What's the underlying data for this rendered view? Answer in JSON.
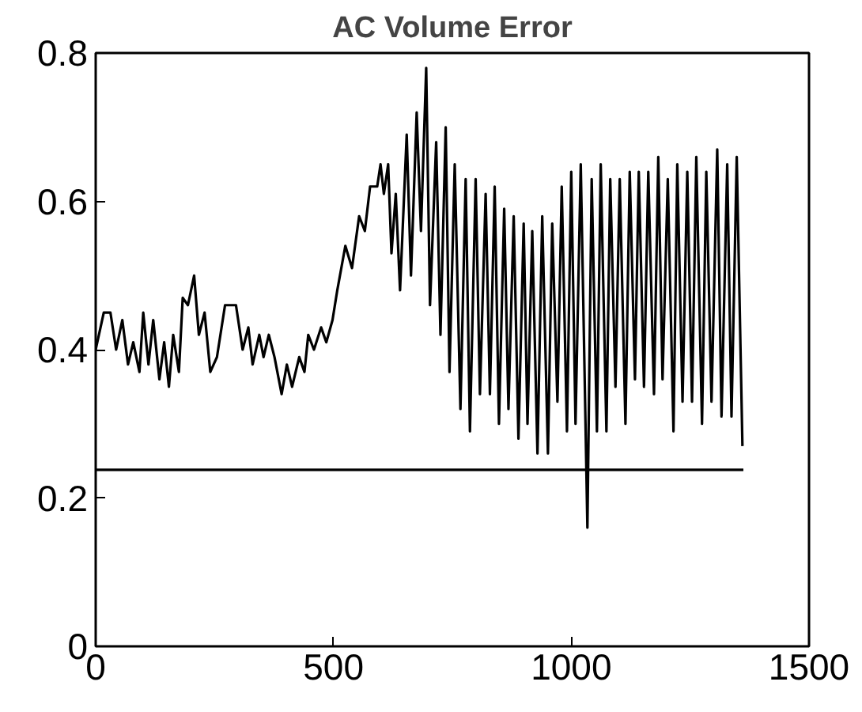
{
  "chart_data": {
    "type": "line",
    "title": "AC Volume Error",
    "xlim": [
      0,
      1500
    ],
    "ylim": [
      0,
      0.8
    ],
    "xticks": [
      0,
      500,
      1000,
      1500
    ],
    "yticks": [
      0,
      0.2,
      0.4,
      0.6,
      0.8
    ],
    "grid": false,
    "line_style": "solid",
    "series": [
      {
        "color": "#000000",
        "x": [
          0,
          17,
          31,
          43,
          56,
          68,
          79,
          92,
          100,
          111,
          121,
          134,
          144,
          154,
          163,
          175,
          183,
          194,
          207,
          217,
          229,
          241,
          255,
          272,
          295,
          309,
          321,
          330,
          344,
          353,
          364,
          376,
          391,
          402,
          413,
          428,
          439,
          447,
          459,
          474,
          485,
          498,
          508,
          525,
          539,
          554,
          566,
          577,
          592,
          599,
          606,
          615,
          622,
          631,
          640,
          654,
          663,
          675,
          684,
          695,
          703,
          716,
          725,
          736,
          744,
          755,
          767,
          778,
          787,
          799,
          808,
          820,
          829,
          839,
          848,
          859,
          868,
          879,
          889,
          900,
          908,
          918,
          929,
          939,
          951,
          960,
          971,
          980,
          991,
          1000,
          1009,
          1020,
          1034,
          1043,
          1054,
          1062,
          1074,
          1082,
          1093,
          1102,
          1114,
          1123,
          1134,
          1142,
          1153,
          1162,
          1174,
          1183,
          1192,
          1203,
          1215,
          1223,
          1234,
          1244,
          1254,
          1263,
          1275,
          1284,
          1295,
          1307,
          1316,
          1328,
          1337,
          1348,
          1360
        ],
        "values": [
          0.4,
          0.45,
          0.45,
          0.4,
          0.44,
          0.38,
          0.41,
          0.37,
          0.45,
          0.38,
          0.44,
          0.36,
          0.41,
          0.35,
          0.42,
          0.37,
          0.47,
          0.46,
          0.5,
          0.42,
          0.45,
          0.37,
          0.39,
          0.46,
          0.46,
          0.4,
          0.43,
          0.38,
          0.42,
          0.39,
          0.42,
          0.39,
          0.34,
          0.38,
          0.35,
          0.39,
          0.37,
          0.42,
          0.4,
          0.43,
          0.41,
          0.44,
          0.48,
          0.54,
          0.51,
          0.58,
          0.56,
          0.62,
          0.62,
          0.65,
          0.61,
          0.65,
          0.53,
          0.61,
          0.48,
          0.69,
          0.5,
          0.72,
          0.56,
          0.78,
          0.46,
          0.68,
          0.42,
          0.7,
          0.37,
          0.65,
          0.32,
          0.63,
          0.29,
          0.63,
          0.34,
          0.61,
          0.34,
          0.62,
          0.3,
          0.59,
          0.32,
          0.58,
          0.28,
          0.57,
          0.3,
          0.56,
          0.26,
          0.58,
          0.26,
          0.57,
          0.33,
          0.62,
          0.29,
          0.64,
          0.3,
          0.65,
          0.16,
          0.63,
          0.29,
          0.65,
          0.29,
          0.63,
          0.35,
          0.63,
          0.3,
          0.64,
          0.36,
          0.64,
          0.35,
          0.64,
          0.34,
          0.66,
          0.36,
          0.63,
          0.29,
          0.65,
          0.33,
          0.64,
          0.33,
          0.66,
          0.3,
          0.64,
          0.33,
          0.67,
          0.31,
          0.65,
          0.31,
          0.66,
          0.27
        ]
      },
      {
        "color": "#000000",
        "x": [
          0,
          1362
        ],
        "values": [
          0.238,
          0.238
        ]
      }
    ]
  }
}
